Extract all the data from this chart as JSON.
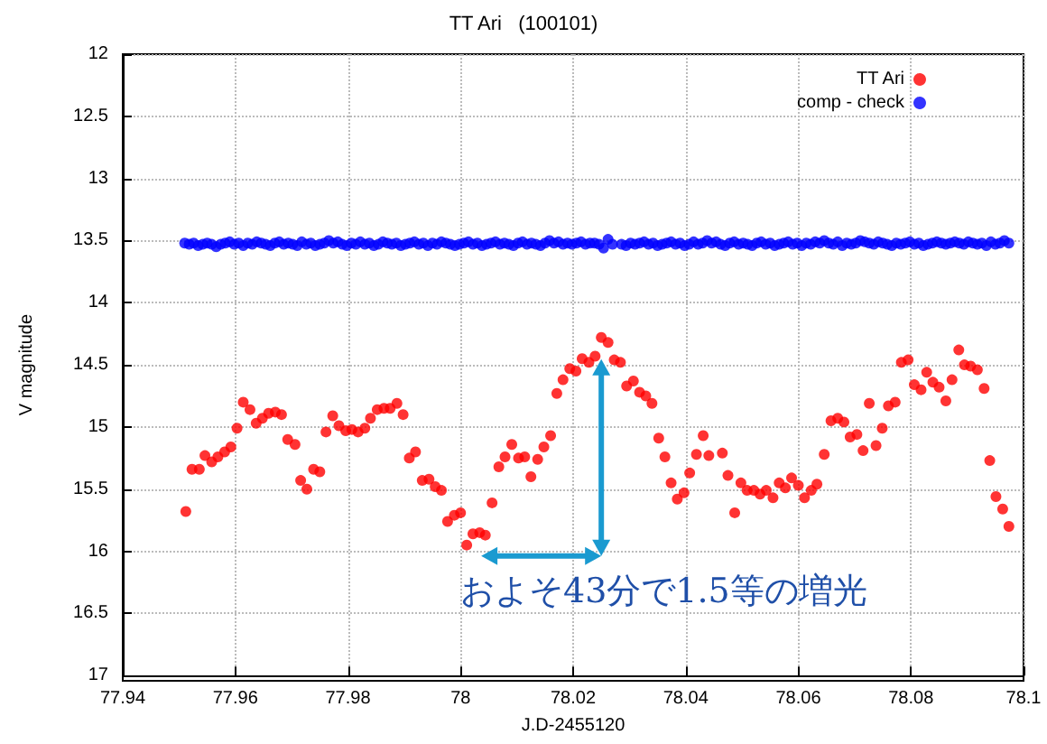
{
  "chart_data": {
    "type": "scatter",
    "title": "TT Ari   (100101)",
    "xlabel": "J.D-2455120",
    "ylabel": "V magnitude",
    "xlim": [
      77.94,
      78.1
    ],
    "xticks": [
      77.94,
      77.96,
      77.98,
      78,
      78.02,
      78.04,
      78.06,
      78.08,
      78.1
    ],
    "ylim": [
      17,
      12
    ],
    "yticks": [
      12,
      12.5,
      13,
      13.5,
      14,
      14.5,
      15,
      15.5,
      16,
      16.5,
      17
    ],
    "grid": true,
    "legend": "top right",
    "marker": "circle",
    "annotations": [
      "およそ43分で1.5等の増光"
    ],
    "series": [
      {
        "name": "TT Ari",
        "color": "#ff0000",
        "x": [
          77.9512,
          77.9523,
          77.9536,
          77.9546,
          77.9558,
          77.9569,
          77.9581,
          77.9592,
          77.9603,
          77.9614,
          77.9626,
          77.9637,
          77.9648,
          77.9659,
          77.9671,
          77.9682,
          77.9693,
          77.9706,
          77.9716,
          77.9727,
          77.9739,
          77.975,
          77.9761,
          77.9773,
          77.9784,
          77.9796,
          77.9807,
          77.9818,
          77.983,
          77.984,
          77.9852,
          77.9864,
          77.9875,
          77.9887,
          77.9898,
          77.9909,
          77.992,
          77.9932,
          77.9944,
          77.9955,
          77.9966,
          77.9977,
          77.9989,
          78.0,
          78.0011,
          78.0022,
          78.0034,
          78.0044,
          78.0056,
          78.0068,
          78.0079,
          78.0091,
          78.0103,
          78.0114,
          78.0125,
          78.0137,
          78.0148,
          78.016,
          78.0171,
          78.0182,
          78.0194,
          78.0205,
          78.0216,
          78.0228,
          78.0239,
          78.025,
          78.0262,
          78.0273,
          78.0284,
          78.0295,
          78.0307,
          78.0318,
          78.0329,
          78.034,
          78.0352,
          78.0363,
          78.0374,
          78.0385,
          78.0397,
          78.0407,
          78.0419,
          78.0431,
          78.0441,
          78.0465,
          78.0475,
          78.0487,
          78.0498,
          78.0509,
          78.0521,
          78.0532,
          78.0543,
          78.0555,
          78.0566,
          78.0577,
          78.0588,
          78.06,
          78.0611,
          78.0623,
          78.0633,
          78.0646,
          78.0658,
          78.067,
          78.0681,
          78.0692,
          78.0704,
          78.0715,
          78.0726,
          78.0738,
          78.0749,
          78.076,
          78.0772,
          78.0783,
          78.0795,
          78.0806,
          78.0818,
          78.0828,
          78.0839,
          78.085,
          78.0862,
          78.0873,
          78.0885,
          78.0895,
          78.0906,
          78.0918,
          78.093,
          78.094,
          78.0951,
          78.0963,
          78.0974
        ],
        "values": [
          15.68,
          15.34,
          15.34,
          15.23,
          15.28,
          15.24,
          15.2,
          15.16,
          15.01,
          14.8,
          14.86,
          14.97,
          14.93,
          14.89,
          14.88,
          14.9,
          15.1,
          15.14,
          15.43,
          15.5,
          15.34,
          15.36,
          15.04,
          14.91,
          14.99,
          15.03,
          15.02,
          15.04,
          15.01,
          14.93,
          14.86,
          14.85,
          14.85,
          14.81,
          14.9,
          15.25,
          15.2,
          15.43,
          15.42,
          15.48,
          15.51,
          15.76,
          15.71,
          15.69,
          15.95,
          15.86,
          15.85,
          15.87,
          15.61,
          15.32,
          15.24,
          15.14,
          15.25,
          15.24,
          15.4,
          15.26,
          15.16,
          15.07,
          14.73,
          14.62,
          14.53,
          14.55,
          14.45,
          14.48,
          14.43,
          14.28,
          14.32,
          14.46,
          14.48,
          14.67,
          14.63,
          14.72,
          14.75,
          14.81,
          15.09,
          15.24,
          15.45,
          15.58,
          15.53,
          15.37,
          15.22,
          15.07,
          15.23,
          15.21,
          15.39,
          15.69,
          15.45,
          15.51,
          15.51,
          15.54,
          15.51,
          15.57,
          15.45,
          15.49,
          15.41,
          15.47,
          15.57,
          15.51,
          15.46,
          15.22,
          14.95,
          14.93,
          14.96,
          15.08,
          15.06,
          15.19,
          14.81,
          15.15,
          15.01,
          14.83,
          14.8,
          14.48,
          14.46,
          14.66,
          14.7,
          14.56,
          14.64,
          14.68,
          14.79,
          14.62,
          14.38,
          14.5,
          14.51,
          14.54,
          14.69,
          15.27,
          15.56,
          15.66,
          15.8
        ]
      },
      {
        "name": "comp - check",
        "color": "#0000ff",
        "x": [
          77.951,
          77.9518,
          77.9526,
          77.9534,
          77.9542,
          77.955,
          77.9558,
          77.9566,
          77.9574,
          77.9582,
          77.959,
          77.9598,
          77.9606,
          77.9614,
          77.9622,
          77.963,
          77.9638,
          77.9646,
          77.9654,
          77.9662,
          77.967,
          77.9678,
          77.9686,
          77.9694,
          77.9702,
          77.971,
          77.9718,
          77.9726,
          77.9734,
          77.9742,
          77.975,
          77.9758,
          77.9766,
          77.9774,
          77.9782,
          77.979,
          77.9798,
          77.9806,
          77.9814,
          77.9822,
          77.983,
          77.9838,
          77.9846,
          77.9854,
          77.9862,
          77.987,
          77.9878,
          77.9886,
          77.9894,
          77.9902,
          77.991,
          77.9918,
          77.9926,
          77.9934,
          77.9942,
          77.995,
          77.9958,
          77.9966,
          77.9974,
          77.9982,
          77.999,
          77.9998,
          78.0006,
          78.0014,
          78.0022,
          78.003,
          78.0038,
          78.0046,
          78.0054,
          78.0062,
          78.007,
          78.0078,
          78.0086,
          78.0094,
          78.0102,
          78.011,
          78.0118,
          78.0126,
          78.0134,
          78.0142,
          78.015,
          78.0158,
          78.0166,
          78.0174,
          78.0182,
          78.019,
          78.0198,
          78.0206,
          78.0214,
          78.0222,
          78.023,
          78.0238,
          78.0246,
          78.0254,
          78.0262,
          78.027,
          78.0278,
          78.0286,
          78.0294,
          78.0302,
          78.031,
          78.0318,
          78.0326,
          78.0334,
          78.0342,
          78.035,
          78.0358,
          78.0366,
          78.0374,
          78.0382,
          78.039,
          78.0398,
          78.0406,
          78.0414,
          78.0422,
          78.043,
          78.0438,
          78.0446,
          78.0454,
          78.0462,
          78.047,
          78.0478,
          78.0486,
          78.0494,
          78.0502,
          78.051,
          78.0518,
          78.0526,
          78.0534,
          78.0542,
          78.055,
          78.0558,
          78.0566,
          78.0574,
          78.0582,
          78.059,
          78.0598,
          78.0606,
          78.0614,
          78.0622,
          78.063,
          78.0638,
          78.0646,
          78.0654,
          78.0662,
          78.067,
          78.0678,
          78.0686,
          78.0694,
          78.0702,
          78.071,
          78.0718,
          78.0726,
          78.0734,
          78.0742,
          78.075,
          78.0758,
          78.0766,
          78.0774,
          78.0782,
          78.079,
          78.0798,
          78.0806,
          78.0814,
          78.0822,
          78.083,
          78.0838,
          78.0846,
          78.0854,
          78.0862,
          78.087,
          78.0878,
          78.0886,
          78.0894,
          78.0902,
          78.091,
          78.0918,
          78.0926,
          78.0934,
          78.0942,
          78.095,
          78.0958,
          78.0966,
          78.0974
        ],
        "values": [
          13.52,
          13.53,
          13.52,
          13.54,
          13.53,
          13.52,
          13.53,
          13.55,
          13.53,
          13.52,
          13.51,
          13.53,
          13.52,
          13.54,
          13.52,
          13.53,
          13.51,
          13.52,
          13.53,
          13.54,
          13.52,
          13.51,
          13.53,
          13.52,
          13.53,
          13.54,
          13.51,
          13.53,
          13.52,
          13.54,
          13.53,
          13.52,
          13.5,
          13.52,
          13.51,
          13.53,
          13.54,
          13.52,
          13.53,
          13.51,
          13.53,
          13.52,
          13.54,
          13.53,
          13.51,
          13.52,
          13.53,
          13.52,
          13.54,
          13.53,
          13.52,
          13.51,
          13.53,
          13.52,
          13.54,
          13.52,
          13.53,
          13.51,
          13.52,
          13.53,
          13.54,
          13.53,
          13.52,
          13.51,
          13.53,
          13.52,
          13.54,
          13.53,
          13.52,
          13.51,
          13.53,
          13.52,
          13.53,
          13.54,
          13.52,
          13.51,
          13.53,
          13.52,
          13.53,
          13.54,
          13.52,
          13.5,
          13.52,
          13.51,
          13.53,
          13.52,
          13.53,
          13.52,
          13.51,
          13.53,
          13.52,
          13.52,
          13.53,
          13.56,
          13.49,
          13.53,
          null,
          13.53,
          13.54,
          13.52,
          13.53,
          13.52,
          13.51,
          13.53,
          13.52,
          13.54,
          13.53,
          13.52,
          13.51,
          13.53,
          13.52,
          13.54,
          13.53,
          13.51,
          13.53,
          13.52,
          13.5,
          13.52,
          13.51,
          13.53,
          13.54,
          13.52,
          13.51,
          13.53,
          13.52,
          13.53,
          13.54,
          13.52,
          13.51,
          13.53,
          13.52,
          13.54,
          13.53,
          13.52,
          13.51,
          13.53,
          13.52,
          13.54,
          13.52,
          13.53,
          13.51,
          13.52,
          13.5,
          13.52,
          13.53,
          13.51,
          13.54,
          13.52,
          13.53,
          13.52,
          13.5,
          13.51,
          13.52,
          13.53,
          13.51,
          13.52,
          13.53,
          13.54,
          13.52,
          13.53,
          13.52,
          13.51,
          13.53,
          13.52,
          13.54,
          13.53,
          13.52,
          13.51,
          13.52,
          13.53,
          13.52,
          13.51,
          13.52,
          13.53,
          13.51,
          13.52,
          13.53,
          13.52,
          13.54,
          13.51,
          13.53,
          13.52,
          13.5,
          13.52
        ]
      }
    ]
  }
}
